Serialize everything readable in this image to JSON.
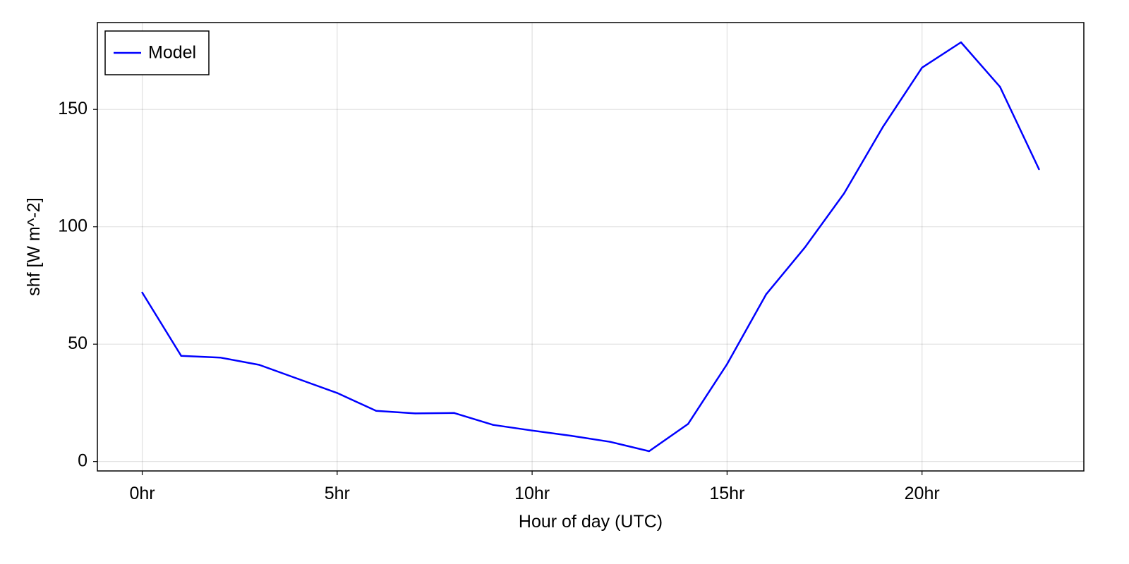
{
  "chart_data": {
    "type": "line",
    "xlabel": "Hour of day (UTC)",
    "ylabel": "shf [W m^-2]",
    "xlim": [
      -1.15,
      24.15
    ],
    "ylim": [
      -4,
      187
    ],
    "x_ticks": [
      0,
      5,
      10,
      15,
      20
    ],
    "x_tick_labels": [
      "0hr",
      "5hr",
      "10hr",
      "15hr",
      "20hr"
    ],
    "y_ticks": [
      0,
      50,
      100,
      150
    ],
    "y_tick_labels": [
      "0",
      "50",
      "100",
      "150"
    ],
    "grid": true,
    "legend_position": "top-left",
    "series": [
      {
        "name": "Model",
        "color": "#0000ff",
        "x": [
          0,
          1,
          2,
          3,
          4,
          5,
          6,
          7,
          8,
          9,
          10,
          11,
          12,
          13,
          14,
          15,
          16,
          17,
          18,
          19,
          20,
          21,
          22,
          23
        ],
        "y": [
          72.0,
          45.0,
          44.3,
          41.2,
          35.2,
          29.2,
          21.6,
          20.5,
          20.7,
          15.6,
          13.2,
          11.0,
          8.4,
          4.4,
          16.0,
          41.5,
          71.2,
          91.3,
          114.2,
          142.6,
          167.8,
          178.6,
          159.6,
          124.5
        ]
      }
    ]
  }
}
